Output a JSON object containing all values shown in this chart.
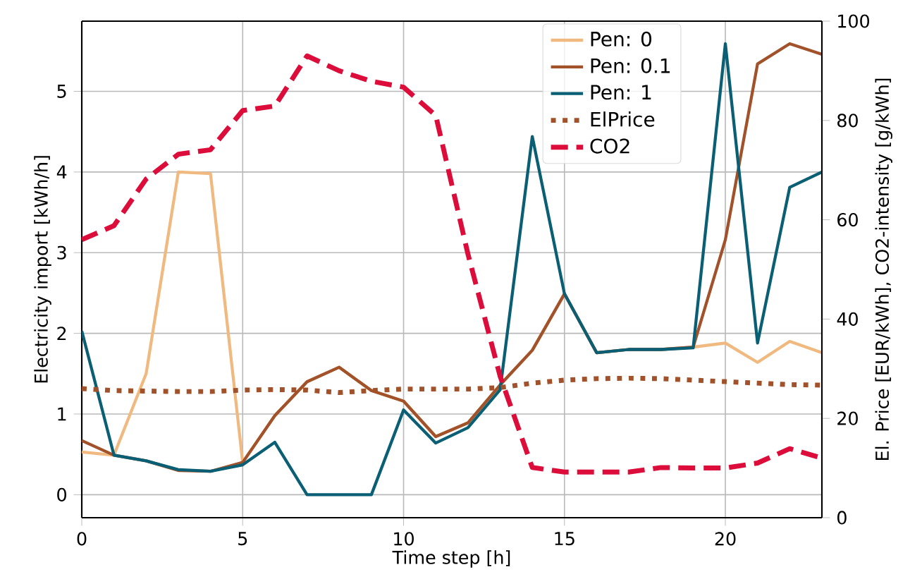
{
  "chart_data": {
    "type": "line",
    "xlabel": "Time step [h]",
    "ylabel": "Electricity import [kWh/h]",
    "y2label": "El. Price [EUR/kWh], CO2-intensity [g/kWh]",
    "x": [
      0,
      1,
      2,
      3,
      4,
      5,
      6,
      7,
      8,
      9,
      10,
      11,
      12,
      13,
      14,
      15,
      16,
      17,
      18,
      19,
      20,
      21,
      22,
      23
    ],
    "series": [
      {
        "name": "Pen: 0",
        "color": "#f0b97f",
        "line_style": "solid",
        "values": [
          0.53,
          0.49,
          1.5,
          4.0,
          3.98,
          0.4,
          0.98,
          1.4,
          1.58,
          1.29,
          1.16,
          0.72,
          0.89,
          1.36,
          1.79,
          2.49,
          1.76,
          1.8,
          1.8,
          1.83,
          1.88,
          1.64,
          1.9,
          1.76
        ]
      },
      {
        "name": "Pen: 0.1",
        "color": "#a2522a",
        "line_style": "solid",
        "values": [
          0.67,
          0.49,
          0.42,
          0.3,
          0.29,
          0.4,
          0.98,
          1.4,
          1.58,
          1.29,
          1.16,
          0.72,
          0.89,
          1.36,
          1.79,
          2.49,
          1.76,
          1.8,
          1.8,
          1.83,
          3.16,
          5.34,
          5.59,
          5.46
        ]
      },
      {
        "name": "Pen: 1",
        "color": "#0b5f74",
        "line_style": "solid",
        "values": [
          2.03,
          0.49,
          0.42,
          0.31,
          0.29,
          0.37,
          0.65,
          0,
          0,
          0,
          1.05,
          0.64,
          0.83,
          1.3,
          4.44,
          2.49,
          1.76,
          1.8,
          1.8,
          1.82,
          5.59,
          1.88,
          3.81,
          4.0
        ]
      },
      {
        "name": "ElPrice",
        "color": "#a2522a",
        "line_style": "dotted",
        "axis": "y2",
        "values": [
          26,
          25.6,
          25.5,
          25.4,
          25.4,
          25.7,
          25.8,
          25.7,
          25.2,
          25.6,
          25.9,
          25.9,
          25.9,
          26.2,
          27.1,
          27.7,
          28,
          28.1,
          28,
          27.7,
          27.4,
          27.1,
          26.8,
          26.7
        ]
      },
      {
        "name": "CO2",
        "color": "#dc0d3a",
        "line_style": "dashed",
        "axis": "y2",
        "values": [
          56,
          58.8,
          68.2,
          73.2,
          74.1,
          82,
          82.9,
          93,
          90,
          87.9,
          86.7,
          81,
          53.1,
          28.5,
          10.1,
          9.2,
          9.2,
          9.2,
          10.1,
          10,
          10,
          11,
          13.9,
          12
        ]
      }
    ],
    "xlim": [
      0,
      23
    ],
    "xticks": [
      0,
      5,
      10,
      15,
      20
    ],
    "ylim": [
      -0.285,
      5.87
    ],
    "yticks": [
      0,
      1,
      2,
      3,
      4,
      5
    ],
    "y2lim": [
      0,
      100
    ],
    "y2ticks": [
      0,
      20,
      40,
      60,
      80,
      100
    ],
    "grid": true,
    "legend": "top right"
  }
}
